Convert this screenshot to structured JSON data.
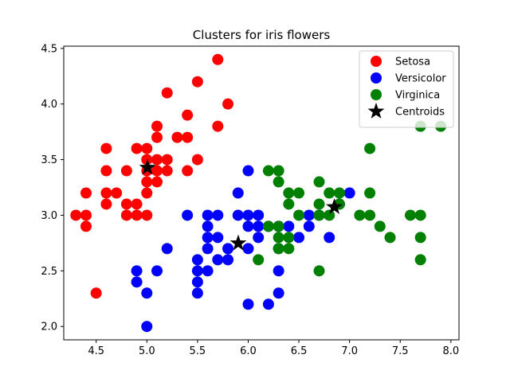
{
  "chart_data": {
    "type": "scatter",
    "title": "Clusters for iris flowers",
    "xlabel": "",
    "ylabel": "",
    "xlim": [
      4.18,
      8.08
    ],
    "ylim": [
      1.88,
      4.52
    ],
    "xticks": [
      4.5,
      5.0,
      5.5,
      6.0,
      6.5,
      7.0,
      7.5,
      8.0
    ],
    "xtick_labels": [
      "4.5",
      "5.0",
      "5.5",
      "6.0",
      "6.5",
      "7.0",
      "7.5",
      "8.0"
    ],
    "yticks": [
      2.0,
      2.5,
      3.0,
      3.5,
      4.0,
      4.5
    ],
    "ytick_labels": [
      "2.0",
      "2.5",
      "3.0",
      "3.5",
      "4.0",
      "4.5"
    ],
    "grid": false,
    "legend_position": "top-right",
    "series": [
      {
        "name": "Setosa",
        "color": "#ff0000",
        "marker": "circle",
        "points": [
          [
            5.7,
            4.4
          ],
          [
            5.5,
            4.2
          ],
          [
            5.2,
            4.1
          ],
          [
            5.8,
            4.0
          ],
          [
            5.4,
            3.9
          ],
          [
            5.1,
            3.8
          ],
          [
            5.7,
            3.8
          ],
          [
            5.1,
            3.7
          ],
          [
            5.3,
            3.7
          ],
          [
            5.4,
            3.7
          ],
          [
            4.6,
            3.6
          ],
          [
            4.9,
            3.6
          ],
          [
            5.0,
            3.6
          ],
          [
            5.0,
            3.5
          ],
          [
            5.1,
            3.5
          ],
          [
            5.2,
            3.5
          ],
          [
            5.5,
            3.5
          ],
          [
            4.6,
            3.4
          ],
          [
            4.8,
            3.4
          ],
          [
            5.0,
            3.4
          ],
          [
            5.1,
            3.4
          ],
          [
            5.2,
            3.4
          ],
          [
            5.4,
            3.4
          ],
          [
            5.0,
            3.3
          ],
          [
            5.1,
            3.3
          ],
          [
            4.4,
            3.2
          ],
          [
            4.6,
            3.2
          ],
          [
            4.7,
            3.2
          ],
          [
            5.0,
            3.2
          ],
          [
            4.6,
            3.1
          ],
          [
            4.8,
            3.1
          ],
          [
            4.9,
            3.1
          ],
          [
            4.3,
            3.0
          ],
          [
            4.4,
            3.0
          ],
          [
            4.8,
            3.0
          ],
          [
            4.9,
            3.0
          ],
          [
            5.0,
            3.0
          ],
          [
            4.4,
            2.9
          ],
          [
            4.5,
            2.3
          ]
        ]
      },
      {
        "name": "Versicolor",
        "color": "#0000ff",
        "marker": "circle",
        "points": [
          [
            6.0,
            3.4
          ],
          [
            5.9,
            3.2
          ],
          [
            7.0,
            3.2
          ],
          [
            6.9,
            3.1
          ],
          [
            5.4,
            3.0
          ],
          [
            5.6,
            3.0
          ],
          [
            5.7,
            3.0
          ],
          [
            5.9,
            3.0
          ],
          [
            6.0,
            3.0
          ],
          [
            6.1,
            3.0
          ],
          [
            6.2,
            2.9
          ],
          [
            6.6,
            3.0
          ],
          [
            6.7,
            3.0
          ],
          [
            5.6,
            2.9
          ],
          [
            6.0,
            2.9
          ],
          [
            6.1,
            2.9
          ],
          [
            6.3,
            2.9
          ],
          [
            6.4,
            2.9
          ],
          [
            6.6,
            2.9
          ],
          [
            5.6,
            2.8
          ],
          [
            5.7,
            2.8
          ],
          [
            6.1,
            2.8
          ],
          [
            6.5,
            2.8
          ],
          [
            6.8,
            2.8
          ],
          [
            5.6,
            2.7
          ],
          [
            5.8,
            2.7
          ],
          [
            6.0,
            2.7
          ],
          [
            5.2,
            2.7
          ],
          [
            6.3,
            2.7
          ],
          [
            5.5,
            2.6
          ],
          [
            5.7,
            2.6
          ],
          [
            5.8,
            2.6
          ],
          [
            5.5,
            2.5
          ],
          [
            5.6,
            2.5
          ],
          [
            4.9,
            2.5
          ],
          [
            5.1,
            2.5
          ],
          [
            6.3,
            2.5
          ],
          [
            4.9,
            2.4
          ],
          [
            5.5,
            2.4
          ],
          [
            5.0,
            2.3
          ],
          [
            5.5,
            2.3
          ],
          [
            6.3,
            2.3
          ],
          [
            6.0,
            2.2
          ],
          [
            6.2,
            2.2
          ],
          [
            5.0,
            2.0
          ]
        ]
      },
      {
        "name": "Virginica",
        "color": "#008000",
        "marker": "circle",
        "points": [
          [
            7.7,
            3.8
          ],
          [
            7.9,
            3.8
          ],
          [
            7.2,
            3.6
          ],
          [
            6.2,
            3.4
          ],
          [
            6.3,
            3.4
          ],
          [
            6.3,
            3.3
          ],
          [
            6.7,
            3.3
          ],
          [
            6.4,
            3.2
          ],
          [
            6.5,
            3.2
          ],
          [
            6.8,
            3.2
          ],
          [
            6.9,
            3.2
          ],
          [
            7.2,
            3.2
          ],
          [
            6.4,
            3.1
          ],
          [
            6.7,
            3.1
          ],
          [
            6.9,
            3.1
          ],
          [
            6.5,
            3.0
          ],
          [
            6.7,
            3.0
          ],
          [
            6.8,
            3.0
          ],
          [
            7.1,
            3.0
          ],
          [
            7.2,
            3.0
          ],
          [
            7.6,
            3.0
          ],
          [
            7.7,
            3.0
          ],
          [
            6.2,
            2.9
          ],
          [
            6.3,
            2.9
          ],
          [
            7.3,
            2.9
          ],
          [
            6.4,
            2.8
          ],
          [
            6.3,
            2.8
          ],
          [
            7.4,
            2.8
          ],
          [
            7.7,
            2.8
          ],
          [
            6.3,
            2.7
          ],
          [
            6.4,
            2.7
          ],
          [
            6.1,
            2.6
          ],
          [
            7.7,
            2.6
          ],
          [
            6.7,
            2.5
          ]
        ]
      },
      {
        "name": "Centroids",
        "color": "#000000",
        "marker": "star",
        "points": [
          [
            5.006,
            3.428
          ],
          [
            5.902,
            2.748
          ],
          [
            6.85,
            3.074
          ]
        ]
      }
    ]
  }
}
